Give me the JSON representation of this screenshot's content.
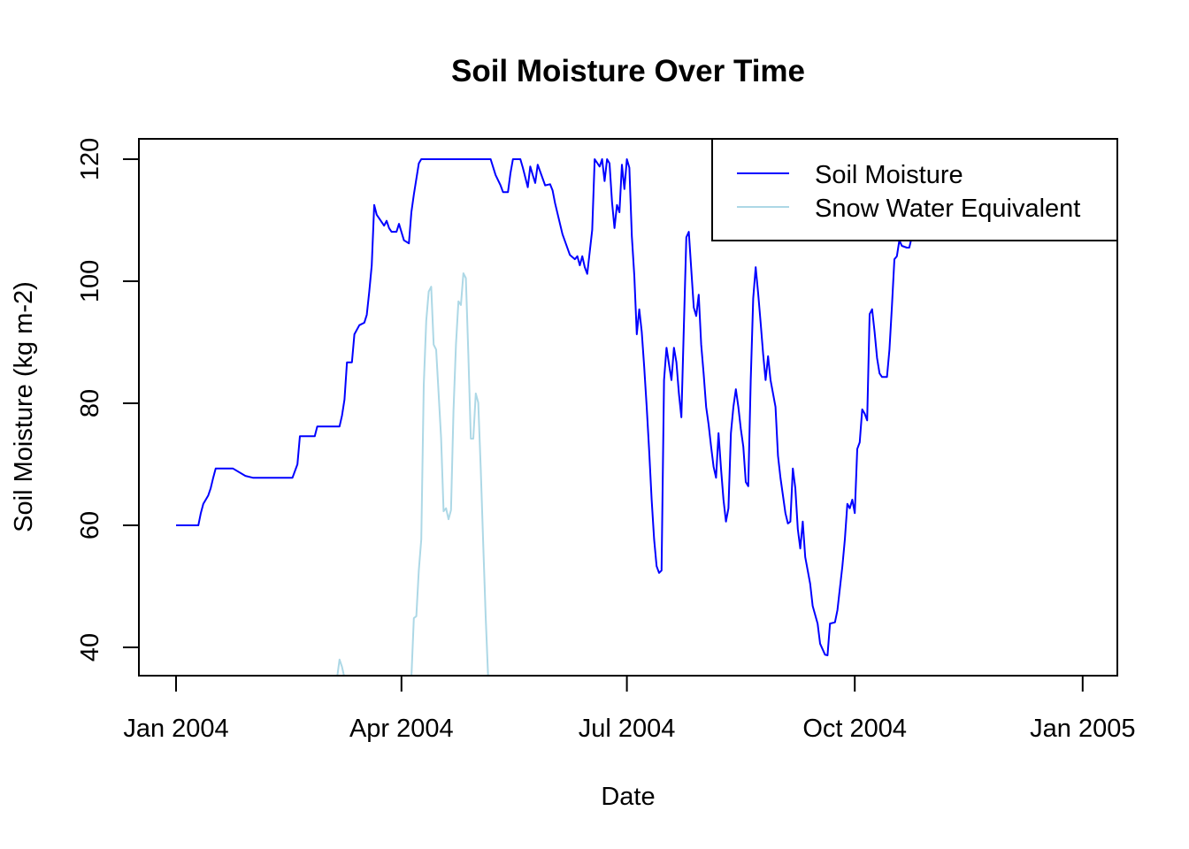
{
  "chart_data": {
    "type": "line",
    "title": "Soil Moisture Over Time",
    "xlabel": "Date",
    "ylabel": "Soil Moisture (kg m-2)",
    "xlim": [
      "2003-12-17",
      "2005-01-15"
    ],
    "ylim": [
      35.36,
      123.33
    ],
    "x_ticks": [
      {
        "date": "2004-01-01",
        "label": "Jan 2004"
      },
      {
        "date": "2004-04-01",
        "label": "Apr 2004"
      },
      {
        "date": "2004-07-01",
        "label": "Jul 2004"
      },
      {
        "date": "2004-10-01",
        "label": "Oct 2004"
      },
      {
        "date": "2005-01-01",
        "label": "Jan 2005"
      }
    ],
    "y_ticks": [
      40,
      60,
      80,
      100,
      120
    ],
    "grid": false,
    "legend": {
      "placement": "top-right",
      "entries": [
        "Soil Moisture",
        "Snow Water Equivalent"
      ]
    },
    "series": [
      {
        "name": "Soil Moisture",
        "color": "#0000FF",
        "points": [
          [
            "2004-01-01",
            60.0
          ],
          [
            "2004-01-10",
            60.0
          ],
          [
            "2004-01-11",
            62.0
          ],
          [
            "2004-01-12",
            63.5
          ],
          [
            "2004-01-14",
            64.9
          ],
          [
            "2004-01-15",
            66.1
          ],
          [
            "2004-01-16",
            67.8
          ],
          [
            "2004-01-17",
            69.3
          ],
          [
            "2004-01-24",
            69.3
          ],
          [
            "2004-01-29",
            68.1
          ],
          [
            "2004-02-01",
            67.8
          ],
          [
            "2004-02-17",
            67.8
          ],
          [
            "2004-02-19",
            70.0
          ],
          [
            "2004-02-20",
            74.6
          ],
          [
            "2004-02-26",
            74.6
          ],
          [
            "2004-02-27",
            76.2
          ],
          [
            "2004-03-07",
            76.2
          ],
          [
            "2004-03-08",
            78.0
          ],
          [
            "2004-03-09",
            80.6
          ],
          [
            "2004-03-10",
            86.7
          ],
          [
            "2004-03-12",
            86.7
          ],
          [
            "2004-03-13",
            91.3
          ],
          [
            "2004-03-15",
            92.8
          ],
          [
            "2004-03-17",
            93.2
          ],
          [
            "2004-03-18",
            94.5
          ],
          [
            "2004-03-19",
            98.3
          ],
          [
            "2004-03-20",
            102.6
          ],
          [
            "2004-03-21",
            112.5
          ],
          [
            "2004-03-22",
            110.9
          ],
          [
            "2004-03-25",
            109.1
          ],
          [
            "2004-03-26",
            109.9
          ],
          [
            "2004-03-27",
            108.7
          ],
          [
            "2004-03-28",
            108.1
          ],
          [
            "2004-03-30",
            108.1
          ],
          [
            "2004-03-31",
            109.4
          ],
          [
            "2004-04-02",
            106.7
          ],
          [
            "2004-04-04",
            106.2
          ],
          [
            "2004-04-05",
            111.3
          ],
          [
            "2004-04-06",
            114.2
          ],
          [
            "2004-04-08",
            119.3
          ],
          [
            "2004-04-09",
            120.0
          ],
          [
            "2004-05-07",
            120.0
          ],
          [
            "2004-05-09",
            117.4
          ],
          [
            "2004-05-11",
            115.7
          ],
          [
            "2004-05-12",
            114.6
          ],
          [
            "2004-05-14",
            114.6
          ],
          [
            "2004-05-15",
            117.7
          ],
          [
            "2004-05-16",
            120.0
          ],
          [
            "2004-05-19",
            120.0
          ],
          [
            "2004-05-20",
            118.6
          ],
          [
            "2004-05-22",
            115.4
          ],
          [
            "2004-05-23",
            118.8
          ],
          [
            "2004-05-24",
            117.4
          ],
          [
            "2004-05-25",
            116.1
          ],
          [
            "2004-05-26",
            119.1
          ],
          [
            "2004-05-29",
            115.7
          ],
          [
            "2004-05-31",
            115.9
          ],
          [
            "2004-06-01",
            114.9
          ],
          [
            "2004-06-02",
            112.8
          ],
          [
            "2004-06-05",
            107.7
          ],
          [
            "2004-06-08",
            104.3
          ],
          [
            "2004-06-10",
            103.6
          ],
          [
            "2004-06-11",
            104.1
          ],
          [
            "2004-06-12",
            102.6
          ],
          [
            "2004-06-13",
            104.1
          ],
          [
            "2004-06-14",
            102.3
          ],
          [
            "2004-06-15",
            101.2
          ],
          [
            "2004-06-17",
            108.4
          ],
          [
            "2004-06-18",
            120.0
          ],
          [
            "2004-06-20",
            118.8
          ],
          [
            "2004-06-21",
            120.0
          ],
          [
            "2004-06-22",
            116.4
          ],
          [
            "2004-06-23",
            120.0
          ],
          [
            "2004-06-24",
            119.3
          ],
          [
            "2004-06-25",
            113.0
          ],
          [
            "2004-06-26",
            108.7
          ],
          [
            "2004-06-27",
            112.5
          ],
          [
            "2004-06-28",
            111.3
          ],
          [
            "2004-06-29",
            119.1
          ],
          [
            "2004-06-30",
            115.1
          ],
          [
            "2004-07-01",
            120.0
          ],
          [
            "2004-07-02",
            118.6
          ],
          [
            "2004-07-03",
            107.4
          ],
          [
            "2004-07-04",
            100.9
          ],
          [
            "2004-07-05",
            91.3
          ],
          [
            "2004-07-06",
            95.4
          ],
          [
            "2004-07-07",
            91.7
          ],
          [
            "2004-07-08",
            85.9
          ],
          [
            "2004-07-09",
            79.4
          ],
          [
            "2004-07-10",
            72.2
          ],
          [
            "2004-07-11",
            64.2
          ],
          [
            "2004-07-12",
            57.7
          ],
          [
            "2004-07-13",
            53.3
          ],
          [
            "2004-07-14",
            52.2
          ],
          [
            "2004-07-15",
            52.6
          ],
          [
            "2004-07-16",
            83.8
          ],
          [
            "2004-07-17",
            89.1
          ],
          [
            "2004-07-18",
            86.4
          ],
          [
            "2004-07-19",
            83.8
          ],
          [
            "2004-07-20",
            89.1
          ],
          [
            "2004-07-21",
            86.7
          ],
          [
            "2004-07-22",
            81.6
          ],
          [
            "2004-07-23",
            77.7
          ],
          [
            "2004-07-24",
            92.5
          ],
          [
            "2004-07-25",
            107.2
          ],
          [
            "2004-07-26",
            108.1
          ],
          [
            "2004-07-27",
            101.9
          ],
          [
            "2004-07-28",
            95.7
          ],
          [
            "2004-07-29",
            94.3
          ],
          [
            "2004-07-30",
            97.8
          ],
          [
            "2004-07-31",
            89.6
          ],
          [
            "2004-08-01",
            84.8
          ],
          [
            "2004-08-02",
            79.4
          ],
          [
            "2004-08-03",
            76.5
          ],
          [
            "2004-08-04",
            72.9
          ],
          [
            "2004-08-05",
            69.6
          ],
          [
            "2004-08-06",
            67.8
          ],
          [
            "2004-08-07",
            75.1
          ],
          [
            "2004-08-08",
            69.3
          ],
          [
            "2004-08-09",
            64.2
          ],
          [
            "2004-08-10",
            60.6
          ],
          [
            "2004-08-11",
            62.8
          ],
          [
            "2004-08-12",
            75.1
          ],
          [
            "2004-08-13",
            79.4
          ],
          [
            "2004-08-14",
            82.3
          ],
          [
            "2004-08-15",
            79.4
          ],
          [
            "2004-08-16",
            75.8
          ],
          [
            "2004-08-17",
            72.9
          ],
          [
            "2004-08-18",
            67.1
          ],
          [
            "2004-08-19",
            66.4
          ],
          [
            "2004-08-20",
            83.8
          ],
          [
            "2004-08-21",
            97.2
          ],
          [
            "2004-08-22",
            102.3
          ],
          [
            "2004-08-23",
            98.0
          ],
          [
            "2004-08-24",
            93.2
          ],
          [
            "2004-08-25",
            88.1
          ],
          [
            "2004-08-26",
            83.8
          ],
          [
            "2004-08-27",
            87.7
          ],
          [
            "2004-08-28",
            83.8
          ],
          [
            "2004-08-30",
            79.4
          ],
          [
            "2004-08-31",
            71.4
          ],
          [
            "2004-09-01",
            67.8
          ],
          [
            "2004-09-03",
            62.0
          ],
          [
            "2004-09-04",
            60.3
          ],
          [
            "2004-09-05",
            60.6
          ],
          [
            "2004-09-06",
            69.3
          ],
          [
            "2004-09-07",
            66.1
          ],
          [
            "2004-09-08",
            59.4
          ],
          [
            "2004-09-09",
            56.2
          ],
          [
            "2004-09-10",
            60.6
          ],
          [
            "2004-09-11",
            54.8
          ],
          [
            "2004-09-13",
            50.4
          ],
          [
            "2004-09-14",
            46.8
          ],
          [
            "2004-09-16",
            43.9
          ],
          [
            "2004-09-17",
            40.6
          ],
          [
            "2004-09-19",
            38.8
          ],
          [
            "2004-09-20",
            38.7
          ],
          [
            "2004-09-21",
            43.9
          ],
          [
            "2004-09-23",
            44.1
          ],
          [
            "2004-09-24",
            46.1
          ],
          [
            "2004-09-26",
            53.3
          ],
          [
            "2004-09-27",
            57.7
          ],
          [
            "2004-09-28",
            63.5
          ],
          [
            "2004-09-29",
            62.8
          ],
          [
            "2004-09-30",
            64.2
          ],
          [
            "2004-10-01",
            62.0
          ],
          [
            "2004-10-02",
            72.5
          ],
          [
            "2004-10-03",
            73.6
          ],
          [
            "2004-10-04",
            79.0
          ],
          [
            "2004-10-05",
            78.3
          ],
          [
            "2004-10-06",
            77.2
          ],
          [
            "2004-10-07",
            94.6
          ],
          [
            "2004-10-08",
            95.4
          ],
          [
            "2004-10-09",
            91.7
          ],
          [
            "2004-10-10",
            87.4
          ],
          [
            "2004-10-11",
            84.9
          ],
          [
            "2004-10-12",
            84.3
          ],
          [
            "2004-10-14",
            84.3
          ],
          [
            "2004-10-15",
            88.8
          ],
          [
            "2004-10-16",
            95.9
          ],
          [
            "2004-10-17",
            103.6
          ],
          [
            "2004-10-18",
            104.1
          ],
          [
            "2004-10-19",
            106.7
          ],
          [
            "2004-10-20",
            105.8
          ],
          [
            "2004-10-22",
            105.5
          ],
          [
            "2004-10-23",
            105.5
          ],
          [
            "2004-10-24",
            107.2
          ]
        ]
      },
      {
        "name": "Snow Water Equivalent",
        "color": "#ADD8E6",
        "points": [
          [
            "2004-03-06",
            35.0
          ],
          [
            "2004-03-07",
            38.0
          ],
          [
            "2004-03-08",
            36.8
          ],
          [
            "2004-03-09",
            35.0
          ],
          [
            "2004-04-05",
            35.0
          ],
          [
            "2004-04-06",
            44.8
          ],
          [
            "2004-04-07",
            45.1
          ],
          [
            "2004-04-08",
            52.6
          ],
          [
            "2004-04-09",
            57.7
          ],
          [
            "2004-04-10",
            83.0
          ],
          [
            "2004-04-11",
            93.5
          ],
          [
            "2004-04-12",
            98.3
          ],
          [
            "2004-04-13",
            99.1
          ],
          [
            "2004-04-14",
            89.6
          ],
          [
            "2004-04-15",
            88.8
          ],
          [
            "2004-04-16",
            81.6
          ],
          [
            "2004-04-17",
            74.3
          ],
          [
            "2004-04-18",
            62.3
          ],
          [
            "2004-04-19",
            62.8
          ],
          [
            "2004-04-20",
            61.0
          ],
          [
            "2004-04-21",
            62.5
          ],
          [
            "2004-04-22",
            78.7
          ],
          [
            "2004-04-23",
            89.6
          ],
          [
            "2004-04-24",
            96.7
          ],
          [
            "2004-04-25",
            96.1
          ],
          [
            "2004-04-26",
            101.3
          ],
          [
            "2004-04-27",
            100.5
          ],
          [
            "2004-04-28",
            88.0
          ],
          [
            "2004-04-29",
            74.2
          ],
          [
            "2004-04-30",
            74.2
          ],
          [
            "2004-05-01",
            81.6
          ],
          [
            "2004-05-02",
            80.1
          ],
          [
            "2004-05-03",
            69.3
          ],
          [
            "2004-05-04",
            57.0
          ],
          [
            "2004-05-05",
            45.0
          ],
          [
            "2004-05-06",
            35.0
          ]
        ]
      }
    ]
  }
}
